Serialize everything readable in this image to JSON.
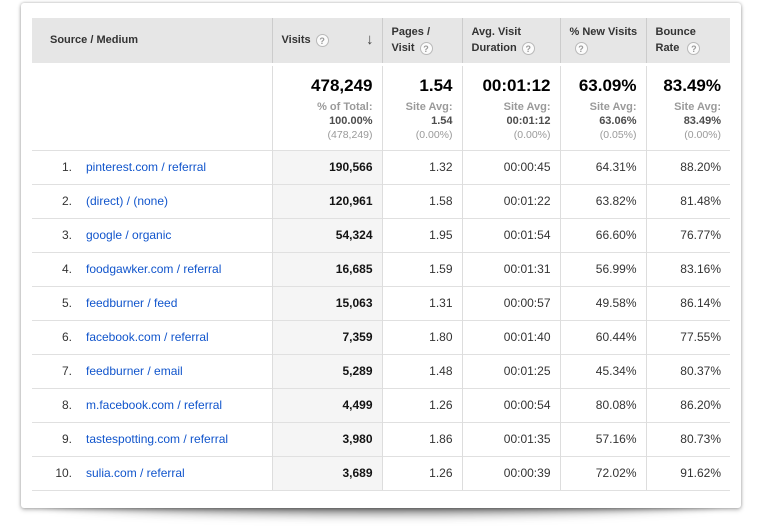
{
  "icons": {
    "help": "?",
    "sort_descending": "↓"
  },
  "colors": {
    "link": "#1155cc",
    "header_bg": "#e6e6e6",
    "sorted_column_bg": "#f5f5f5"
  },
  "table": {
    "columns": [
      {
        "label": "Source / Medium"
      },
      {
        "label": "Visits",
        "sorted": "desc"
      },
      {
        "label": "Pages / Visit"
      },
      {
        "label": "Avg. Visit Duration"
      },
      {
        "label": "% New Visits"
      },
      {
        "label": "Bounce Rate"
      }
    ],
    "summary": {
      "visits": {
        "value": "478,249",
        "avg_label": "% of Total:",
        "avg_value": "100.00%",
        "avg_delta": "(478,249)"
      },
      "pages_per_visit": {
        "value": "1.54",
        "avg_label": "Site Avg:",
        "avg_value": "1.54",
        "avg_delta": "(0.00%)"
      },
      "avg_visit_duration": {
        "value": "00:01:12",
        "avg_label": "Site Avg:",
        "avg_value": "00:01:12",
        "avg_delta": "(0.00%)"
      },
      "pct_new_visits": {
        "value": "63.09%",
        "avg_label": "Site Avg:",
        "avg_value": "63.06%",
        "avg_delta": "(0.05%)"
      },
      "bounce_rate": {
        "value": "83.49%",
        "avg_label": "Site Avg:",
        "avg_value": "83.49%",
        "avg_delta": "(0.00%)"
      }
    },
    "rows": [
      {
        "rank": "1.",
        "source_medium": "pinterest.com / referral",
        "visits": "190,566",
        "pages_per_visit": "1.32",
        "avg_visit_duration": "00:00:45",
        "pct_new_visits": "64.31%",
        "bounce_rate": "88.20%"
      },
      {
        "rank": "2.",
        "source_medium": "(direct) / (none)",
        "visits": "120,961",
        "pages_per_visit": "1.58",
        "avg_visit_duration": "00:01:22",
        "pct_new_visits": "63.82%",
        "bounce_rate": "81.48%"
      },
      {
        "rank": "3.",
        "source_medium": "google / organic",
        "visits": "54,324",
        "pages_per_visit": "1.95",
        "avg_visit_duration": "00:01:54",
        "pct_new_visits": "66.60%",
        "bounce_rate": "76.77%"
      },
      {
        "rank": "4.",
        "source_medium": "foodgawker.com / referral",
        "visits": "16,685",
        "pages_per_visit": "1.59",
        "avg_visit_duration": "00:01:31",
        "pct_new_visits": "56.99%",
        "bounce_rate": "83.16%"
      },
      {
        "rank": "5.",
        "source_medium": "feedburner / feed",
        "visits": "15,063",
        "pages_per_visit": "1.31",
        "avg_visit_duration": "00:00:57",
        "pct_new_visits": "49.58%",
        "bounce_rate": "86.14%"
      },
      {
        "rank": "6.",
        "source_medium": "facebook.com / referral",
        "visits": "7,359",
        "pages_per_visit": "1.80",
        "avg_visit_duration": "00:01:40",
        "pct_new_visits": "60.44%",
        "bounce_rate": "77.55%"
      },
      {
        "rank": "7.",
        "source_medium": "feedburner / email",
        "visits": "5,289",
        "pages_per_visit": "1.48",
        "avg_visit_duration": "00:01:25",
        "pct_new_visits": "45.34%",
        "bounce_rate": "80.37%"
      },
      {
        "rank": "8.",
        "source_medium": "m.facebook.com / referral",
        "visits": "4,499",
        "pages_per_visit": "1.26",
        "avg_visit_duration": "00:00:54",
        "pct_new_visits": "80.08%",
        "bounce_rate": "86.20%"
      },
      {
        "rank": "9.",
        "source_medium": "tastespotting.com / referral",
        "visits": "3,980",
        "pages_per_visit": "1.86",
        "avg_visit_duration": "00:01:35",
        "pct_new_visits": "57.16%",
        "bounce_rate": "80.73%"
      },
      {
        "rank": "10.",
        "source_medium": "sulia.com / referral",
        "visits": "3,689",
        "pages_per_visit": "1.26",
        "avg_visit_duration": "00:00:39",
        "pct_new_visits": "72.02%",
        "bounce_rate": "91.62%"
      }
    ]
  }
}
